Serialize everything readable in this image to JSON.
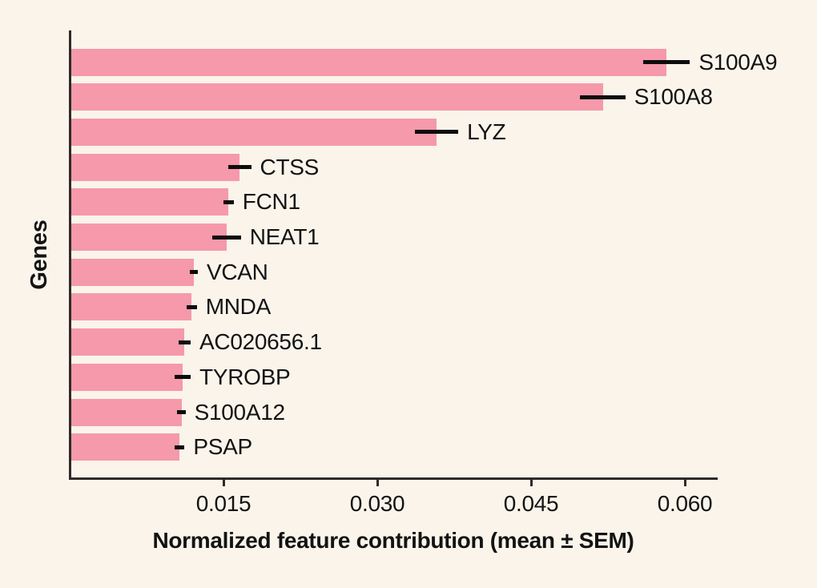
{
  "figure": {
    "background_color": "#faf4eb",
    "bar_color": "#f599ab",
    "axis_color": "#2e2b27",
    "error_bar_color": "#0d0d0d",
    "text_color": "#131313"
  },
  "chart_data": {
    "type": "bar",
    "orientation": "horizontal",
    "title": "",
    "xlabel": "Normalized feature contribution (mean ± SEM)",
    "ylabel": "Genes",
    "categories": [
      "S100A9",
      "S100A8",
      "LYZ",
      "CTSS",
      "FCN1",
      "NEAT1",
      "VCAN",
      "MNDA",
      "AC020656.1",
      "TYROBP",
      "S100A12",
      "PSAP"
    ],
    "series": [
      {
        "name": "Normalized feature contribution (mean)",
        "values": [
          0.0582,
          0.052,
          0.0358,
          0.0166,
          0.0155,
          0.0153,
          0.0121,
          0.0119,
          0.0112,
          0.011,
          0.0109,
          0.0107
        ]
      },
      {
        "name": "SEM",
        "values": [
          0.0023,
          0.0022,
          0.0021,
          0.0011,
          0.0005,
          0.0014,
          0.0004,
          0.0005,
          0.0006,
          0.0008,
          0.0004,
          0.0005
        ]
      }
    ],
    "xlim": [
      0,
      0.0631
    ],
    "xticks": [
      0.015,
      0.03,
      0.045,
      0.06
    ],
    "xtick_labels": [
      "0.015",
      "0.030",
      "0.045",
      "0.060"
    ],
    "grid": false,
    "legend_position": "none",
    "error_bars": "horizontal, mean ± SEM, drawn at bar end",
    "bar_labels_position": "right of error bar"
  }
}
